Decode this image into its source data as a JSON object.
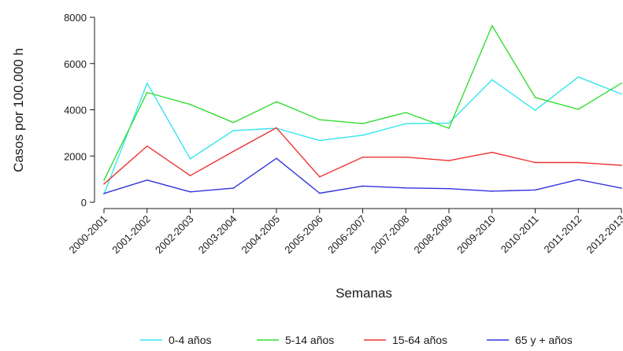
{
  "chart_data": {
    "type": "line",
    "xlabel": "Semanas",
    "ylabel": "Casos por 100.000 h",
    "ylim": [
      0,
      8000
    ],
    "yticks": [
      "0",
      "2000",
      "4000",
      "6000",
      "8000"
    ],
    "grid": false,
    "legend_position": "bottom",
    "categories": [
      "2000-2001",
      "2001-2002",
      "2002-2003",
      "2003-2004",
      "2004-2005",
      "2005-2006",
      "2006-2007",
      "2007-2008",
      "2008-2009",
      "2009-2010",
      "2010-2011",
      "2011-2012",
      "2012-2013"
    ],
    "series": [
      {
        "name": "0-4 años",
        "color": "#33e6ee",
        "values": [
          350,
          5150,
          1880,
          3100,
          3200,
          2670,
          2900,
          3400,
          3420,
          5300,
          3980,
          5420,
          4680
        ]
      },
      {
        "name": "5-14 años",
        "color": "#33dd33",
        "values": [
          950,
          4750,
          4230,
          3450,
          4350,
          3570,
          3400,
          3880,
          3200,
          7640,
          4530,
          4020,
          5150
        ]
      },
      {
        "name": "15-64 años",
        "color": "#ee3333",
        "values": [
          790,
          2430,
          1150,
          2200,
          3220,
          1100,
          1950,
          1950,
          1800,
          2160,
          1720,
          1720,
          1600
        ]
      },
      {
        "name": "65 y + años",
        "color": "#3333dd",
        "values": [
          380,
          960,
          450,
          610,
          1900,
          390,
          700,
          620,
          590,
          480,
          530,
          980,
          610
        ]
      }
    ]
  }
}
